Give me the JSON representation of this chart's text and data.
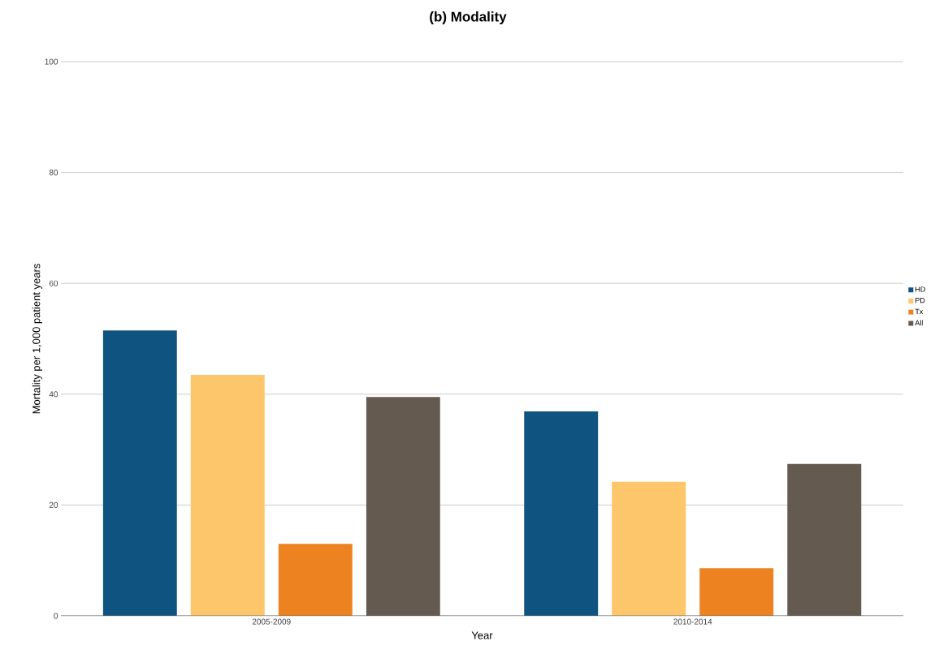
{
  "chart_data": {
    "type": "bar",
    "title": "(b) Modality",
    "xlabel": "Year",
    "ylabel": "Mortality per 1,000 patient years",
    "categories": [
      "2005-2009",
      "2010-2014"
    ],
    "series": [
      {
        "name": "HD",
        "color": "#0f5480",
        "values": [
          51.5,
          36.9
        ]
      },
      {
        "name": "PD",
        "color": "#fec66a",
        "values": [
          43.5,
          24.2
        ]
      },
      {
        "name": "Tx",
        "color": "#ec8220",
        "values": [
          13.0,
          8.6
        ]
      },
      {
        "name": "All",
        "color": "#655a4f",
        "values": [
          39.5,
          27.4
        ]
      }
    ],
    "ylim": [
      0,
      100
    ],
    "yticks": [
      0,
      20,
      40,
      60,
      80,
      100
    ],
    "grid": "y",
    "legend": "right"
  }
}
